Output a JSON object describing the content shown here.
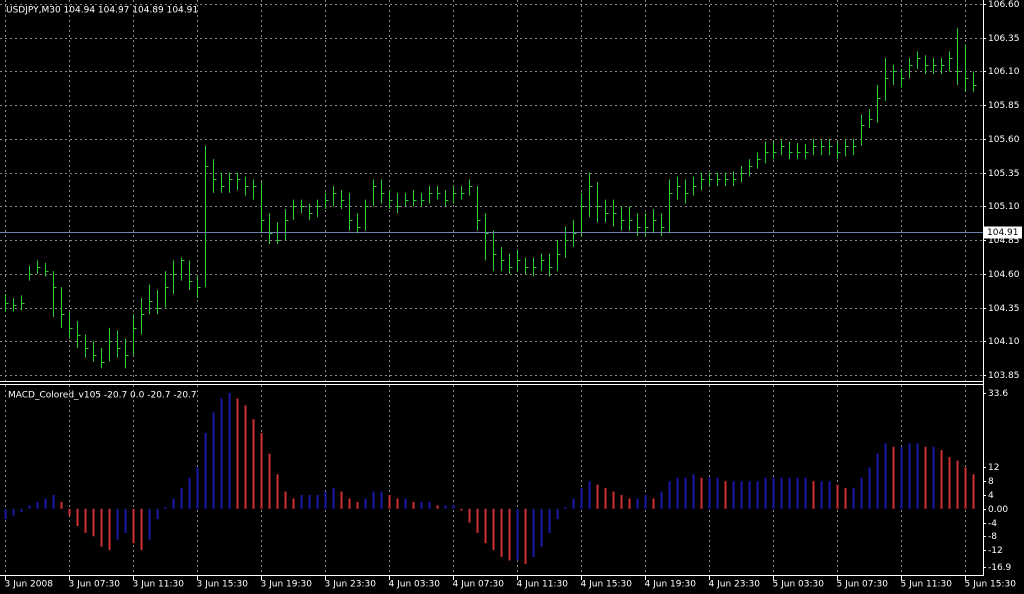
{
  "chart_data": {
    "type": "ohlc",
    "title": "USDJPY,M30  104.94 104.97 104.89 104.91",
    "categories": [
      "3 Jun 2008",
      null,
      null,
      null,
      null,
      null,
      null,
      null,
      "3 Jun 07:30",
      null,
      null,
      null,
      null,
      null,
      null,
      null,
      "3 Jun 11:30",
      null,
      null,
      null,
      null,
      null,
      null,
      null,
      "3 Jun 15:30",
      null,
      null,
      null,
      null,
      null,
      null,
      null,
      "3 Jun 19:30",
      null,
      null,
      null,
      null,
      null,
      null,
      null,
      "3 Jun 23:30",
      null,
      null,
      null,
      null,
      null,
      null,
      null,
      "4 Jun 03:30",
      null,
      null,
      null,
      null,
      null,
      null,
      null,
      "4 Jun 07:30",
      null,
      null,
      null,
      null,
      null,
      null,
      null,
      "4 Jun 11:30",
      null,
      null,
      null,
      null,
      null,
      null,
      null,
      "4 Jun 15:30",
      null,
      null,
      null,
      null,
      null,
      null,
      null,
      "4 Jun 19:30",
      null,
      null,
      null,
      null,
      null,
      null,
      null,
      "4 Jun 23:30",
      null,
      null,
      null,
      null,
      null,
      null,
      null,
      "5 Jun 03:30",
      null,
      null,
      null,
      null,
      null,
      null,
      null,
      "5 Jun 07:30",
      null,
      null,
      null,
      null,
      null,
      null,
      null,
      "5 Jun 11:30",
      null,
      null,
      null,
      null,
      null,
      null,
      null,
      "5 Jun 15:30",
      null
    ],
    "high": [
      104.45,
      104.42,
      104.44,
      104.66,
      104.7,
      104.68,
      104.62,
      104.5,
      104.32,
      104.25,
      104.15,
      104.1,
      104.05,
      104.2,
      104.18,
      104.12,
      104.3,
      104.42,
      104.52,
      104.48,
      104.62,
      104.7,
      104.72,
      104.7,
      104.58,
      105.55,
      105.45,
      105.35,
      105.35,
      105.35,
      105.32,
      105.3,
      105.28,
      105.05,
      104.98,
      105.08,
      105.15,
      105.15,
      105.12,
      105.15,
      105.2,
      105.25,
      105.22,
      105.2,
      105.05,
      105.15,
      105.3,
      105.3,
      105.22,
      105.2,
      105.2,
      105.22,
      105.2,
      105.25,
      105.25,
      105.22,
      105.25,
      105.25,
      105.3,
      105.25,
      105.05,
      104.92,
      104.8,
      104.75,
      104.78,
      104.72,
      104.72,
      104.75,
      104.75,
      104.85,
      104.95,
      105.0,
      105.2,
      105.35,
      105.28,
      105.15,
      105.15,
      105.1,
      105.1,
      105.05,
      105.05,
      105.08,
      105.05,
      105.3,
      105.32,
      105.3,
      105.32,
      105.35,
      105.35,
      105.35,
      105.35,
      105.36,
      105.4,
      105.45,
      105.5,
      105.58,
      105.58,
      105.6,
      105.58,
      105.57,
      105.56,
      105.6,
      105.6,
      105.6,
      105.58,
      105.6,
      105.6,
      105.78,
      105.82,
      106.0,
      106.2,
      106.15,
      106.12,
      106.2,
      106.25,
      106.22,
      106.2,
      106.2,
      106.25,
      106.42,
      106.3,
      106.1
    ],
    "low": [
      104.32,
      104.32,
      104.33,
      104.55,
      104.6,
      104.58,
      104.28,
      104.2,
      104.12,
      104.05,
      103.98,
      103.95,
      103.9,
      103.95,
      103.98,
      103.9,
      104.0,
      104.15,
      104.3,
      104.3,
      104.35,
      104.45,
      104.55,
      104.48,
      104.42,
      104.5,
      105.2,
      105.2,
      105.2,
      105.22,
      105.18,
      105.15,
      104.9,
      104.82,
      104.82,
      104.85,
      105.0,
      105.05,
      105.0,
      105.02,
      105.08,
      105.1,
      105.08,
      104.92,
      104.9,
      104.92,
      105.1,
      105.12,
      105.08,
      105.05,
      105.1,
      105.1,
      105.1,
      105.12,
      105.15,
      105.1,
      105.12,
      105.15,
      105.18,
      104.92,
      104.7,
      104.62,
      104.62,
      104.6,
      104.62,
      104.6,
      104.58,
      104.62,
      104.58,
      104.62,
      104.72,
      104.8,
      104.88,
      105.02,
      104.98,
      104.98,
      104.95,
      104.92,
      104.92,
      104.88,
      104.88,
      104.9,
      104.88,
      104.9,
      105.15,
      105.12,
      105.18,
      105.22,
      105.25,
      105.25,
      105.25,
      105.25,
      105.28,
      105.32,
      105.38,
      105.42,
      105.45,
      105.48,
      105.45,
      105.45,
      105.45,
      105.48,
      105.48,
      105.48,
      105.45,
      105.47,
      105.48,
      105.55,
      105.68,
      105.72,
      105.88,
      106.0,
      105.98,
      106.05,
      106.12,
      106.08,
      106.08,
      106.08,
      106.1,
      106.0,
      105.95,
      105.95
    ],
    "close": [
      104.38,
      104.37,
      104.38,
      104.6,
      104.65,
      104.62,
      104.5,
      104.3,
      104.2,
      104.15,
      104.05,
      104.0,
      103.95,
      104.1,
      104.05,
      104.0,
      104.2,
      104.3,
      104.4,
      104.35,
      104.5,
      104.6,
      104.7,
      104.55,
      104.5,
      105.4,
      105.3,
      105.25,
      105.3,
      105.3,
      105.25,
      105.25,
      105.0,
      104.9,
      104.85,
      105.0,
      105.1,
      105.1,
      105.05,
      105.1,
      105.15,
      105.2,
      105.15,
      105.0,
      104.95,
      105.1,
      105.25,
      105.2,
      105.15,
      105.1,
      105.15,
      105.15,
      105.15,
      105.2,
      105.2,
      105.15,
      105.2,
      105.2,
      105.25,
      105.0,
      104.9,
      104.75,
      104.7,
      104.65,
      104.7,
      104.65,
      104.65,
      104.7,
      104.65,
      104.75,
      104.85,
      104.9,
      105.1,
      105.25,
      105.1,
      105.05,
      105.05,
      105.0,
      105.0,
      104.95,
      104.95,
      105.0,
      104.95,
      105.2,
      105.25,
      105.2,
      105.25,
      105.3,
      105.3,
      105.3,
      105.3,
      105.3,
      105.35,
      105.4,
      105.45,
      105.5,
      105.5,
      105.55,
      105.5,
      105.5,
      105.5,
      105.55,
      105.55,
      105.55,
      105.5,
      105.55,
      105.55,
      105.7,
      105.75,
      105.9,
      106.05,
      106.1,
      106.05,
      106.15,
      106.2,
      106.15,
      106.15,
      106.15,
      106.2,
      106.1,
      106.05,
      106.0
    ],
    "color": "#2ecc2e",
    "ylim": [
      103.85,
      106.6
    ],
    "yticks": [
      {
        "value": 106.6,
        "label": "106.60"
      },
      106.35,
      {
        "value": 106.1,
        "label": "106.10"
      },
      105.85,
      {
        "value": 105.6,
        "label": "105.60"
      },
      105.35,
      {
        "value": 105.1,
        "label": "105.10"
      },
      104.85,
      {
        "value": 104.6,
        "label": "104.60"
      },
      104.35,
      {
        "value": 104.1,
        "label": "104.10"
      },
      103.85
    ],
    "grid": true,
    "bid": 104.91,
    "bid_color": "#6f7fb0",
    "indicator": {
      "type": "histogram",
      "title": "MACD_Colored_v105 -20.7 0.0 -20.7 -20.7",
      "values": [
        -3,
        -2,
        -1,
        1,
        2,
        3,
        4,
        2,
        -2,
        -5,
        -7,
        -8,
        -11,
        -12,
        -9,
        -7,
        -10,
        -12,
        -9,
        -3,
        0.5,
        3,
        6,
        9,
        12,
        22,
        28,
        32,
        33.6,
        32,
        30,
        26,
        22,
        16,
        10,
        5,
        3,
        4,
        4,
        4,
        5,
        6,
        5,
        3,
        2,
        3,
        5,
        5,
        4,
        3,
        3,
        2,
        2,
        2,
        1,
        1,
        1,
        -0.5,
        -4,
        -7,
        -10,
        -12,
        -14,
        -15,
        -15,
        -16,
        -14,
        -11,
        -7,
        -3,
        0.5,
        3,
        6,
        8,
        7,
        6,
        5,
        4,
        3,
        3,
        4,
        3,
        5,
        8,
        9,
        9,
        10,
        9,
        9,
        9,
        8,
        8,
        8,
        8,
        8,
        9,
        9,
        9,
        9,
        9,
        9,
        8,
        8,
        8,
        7,
        6,
        6,
        9,
        12,
        16,
        19,
        18,
        18,
        19,
        19,
        18,
        18,
        17,
        15,
        14,
        12,
        10
      ],
      "ylim": [
        -16.9,
        33.6
      ],
      "yticks": [
        33.6,
        12,
        8,
        4,
        {
          "value": 0,
          "label": "0.00"
        },
        -4,
        -8,
        -12,
        -16.9
      ],
      "up_color": "#1a1aa8",
      "down_color": "#d03030"
    }
  }
}
